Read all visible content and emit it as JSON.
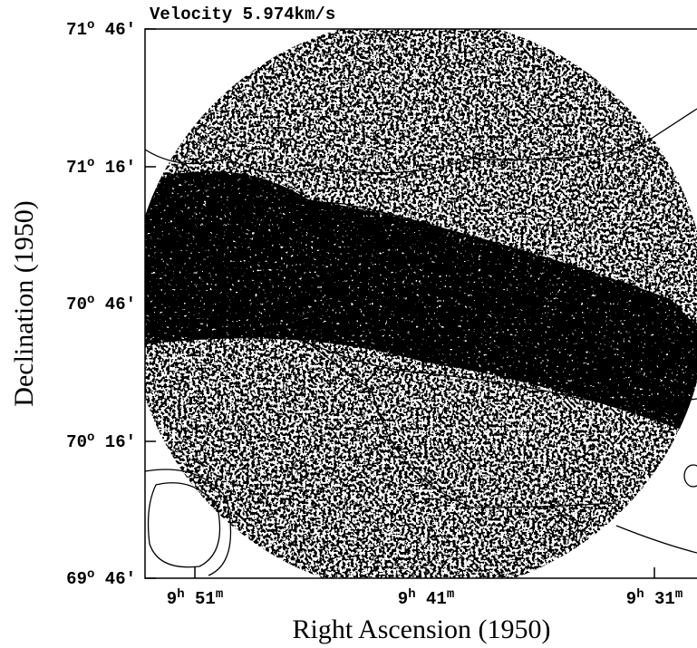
{
  "title": "Velocity 5.974km/s",
  "y_axis_label": "Declination   (1950)",
  "x_axis_label": "Right Ascension   (1950)",
  "dec_ticks": [
    [
      {
        "t": "71"
      },
      {
        "sup": "o"
      },
      {
        "t": " 46′"
      }
    ],
    [
      {
        "t": "71"
      },
      {
        "sup": "o"
      },
      {
        "t": " 16′"
      }
    ],
    [
      {
        "t": "70"
      },
      {
        "sup": "o"
      },
      {
        "t": " 46′"
      }
    ],
    [
      {
        "t": "70"
      },
      {
        "sup": "o"
      },
      {
        "t": " 16′"
      }
    ],
    [
      {
        "t": "69"
      },
      {
        "sup": "o"
      },
      {
        "t": " 46′"
      }
    ]
  ],
  "ra_ticks": [
    [
      {
        "t": "9"
      },
      {
        "sup": "h"
      },
      {
        "t": " 51"
      },
      {
        "sup": "m"
      }
    ],
    [
      {
        "t": "9"
      },
      {
        "sup": "h"
      },
      {
        "t": " 41"
      },
      {
        "sup": "m"
      }
    ],
    [
      {
        "t": "9"
      },
      {
        "sup": "h"
      },
      {
        "t": " 31"
      },
      {
        "sup": "m"
      }
    ]
  ]
}
